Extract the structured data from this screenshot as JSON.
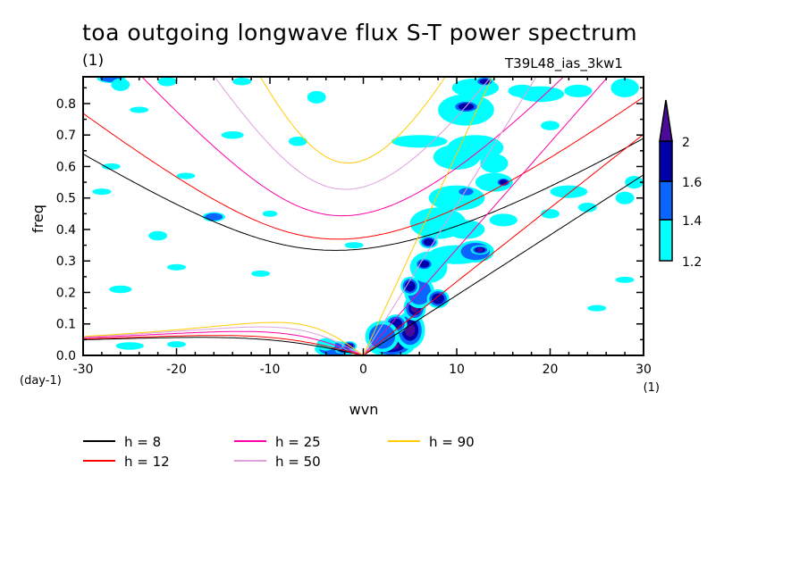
{
  "title": "toa outgoing longwave flux S-T power spectrum",
  "subtitle_units": "(1)",
  "run_label": "T39L48_ias_3kw1",
  "chart_data": {
    "type": "heatmap",
    "xlabel": "wvn",
    "xunits": "(1)",
    "ylabel": "freq",
    "yunits": "(day-1)",
    "xlim": [
      -30,
      30
    ],
    "ylim": [
      0,
      0.885
    ],
    "xticks": [
      -30,
      -20,
      -10,
      0,
      10,
      20,
      30
    ],
    "xtick_labels": [
      "-30",
      "-20",
      "-10",
      "0",
      "10",
      "20",
      "30"
    ],
    "yticks": [
      0,
      0.1,
      0.2,
      0.3,
      0.4,
      0.5,
      0.6,
      0.7,
      0.8
    ],
    "ytick_labels": [
      "0.0",
      "0.1",
      "0.2",
      "0.3",
      "0.4",
      "0.5",
      "0.6",
      "0.7",
      "0.8"
    ],
    "colorbar": {
      "levels": [
        1.2,
        1.4,
        1.6,
        2
      ],
      "level_labels": [
        "1.2",
        "1.4",
        "1.6",
        "2"
      ],
      "colors": [
        "#00ffff",
        "#0a64ff",
        "#0000a8",
        "#4a0a9a"
      ]
    },
    "dispersion_curves": [
      {
        "name": "h =  8",
        "h": 8,
        "color": "#000000"
      },
      {
        "name": "h = 12",
        "h": 12,
        "color": "#ff0000"
      },
      {
        "name": "h = 25",
        "h": 25,
        "color": "#ff00a8"
      },
      {
        "name": "h = 50",
        "h": 50,
        "color": "#dda0dd"
      },
      {
        "name": "h = 90",
        "h": 90,
        "color": "#ffcc00"
      }
    ],
    "power_regions": [
      [
        3,
        0.03,
        2.5,
        0.035,
        4
      ],
      [
        5,
        0.08,
        1.6,
        0.06,
        4
      ],
      [
        5.5,
        0.15,
        1.2,
        0.04,
        4
      ],
      [
        3.5,
        0.1,
        1.2,
        0.03,
        3
      ],
      [
        2,
        0.06,
        1.8,
        0.05,
        2
      ],
      [
        6,
        0.2,
        1.6,
        0.05,
        2
      ],
      [
        5,
        0.22,
        1,
        0.03,
        3
      ],
      [
        8,
        0.18,
        1.2,
        0.03,
        3
      ],
      [
        7,
        0.28,
        2,
        0.05,
        1
      ],
      [
        6.5,
        0.29,
        1,
        0.02,
        3
      ],
      [
        10,
        0.32,
        3,
        0.03,
        1
      ],
      [
        12,
        0.33,
        2,
        0.035,
        2
      ],
      [
        12.5,
        0.335,
        1,
        0.015,
        4
      ],
      [
        8,
        0.42,
        3,
        0.05,
        1
      ],
      [
        11,
        0.4,
        2,
        0.03,
        1
      ],
      [
        7,
        0.36,
        1,
        0.02,
        3
      ],
      [
        15,
        0.43,
        1.5,
        0.02,
        1
      ],
      [
        10,
        0.5,
        3,
        0.04,
        1
      ],
      [
        14,
        0.55,
        2,
        0.03,
        1
      ],
      [
        15,
        0.55,
        0.8,
        0.015,
        3
      ],
      [
        11,
        0.52,
        1,
        0.015,
        2
      ],
      [
        6,
        0.68,
        3,
        0.02,
        1
      ],
      [
        10,
        0.63,
        2.5,
        0.04,
        1
      ],
      [
        12,
        0.66,
        3,
        0.04,
        1
      ],
      [
        14,
        0.61,
        1.5,
        0.03,
        1
      ],
      [
        11,
        0.78,
        3,
        0.05,
        1
      ],
      [
        11,
        0.79,
        1.5,
        0.02,
        3
      ],
      [
        12,
        0.85,
        2.5,
        0.03,
        1
      ],
      [
        13,
        0.87,
        1,
        0.015,
        3
      ],
      [
        17,
        0.84,
        1.5,
        0.02,
        1
      ],
      [
        19,
        0.83,
        2.5,
        0.025,
        1
      ],
      [
        23,
        0.84,
        1.5,
        0.02,
        1
      ],
      [
        28,
        0.85,
        1.5,
        0.03,
        1
      ],
      [
        20,
        0.73,
        1,
        0.015,
        1
      ],
      [
        22,
        0.52,
        2,
        0.02,
        1
      ],
      [
        28,
        0.5,
        1,
        0.02,
        1
      ],
      [
        29,
        0.55,
        1,
        0.02,
        1
      ],
      [
        24,
        0.47,
        1,
        0.015,
        1
      ],
      [
        -3,
        0.02,
        2.2,
        0.025,
        2
      ],
      [
        -2,
        0.015,
        1,
        0.01,
        3
      ],
      [
        -4,
        0.035,
        1,
        0.02,
        1
      ],
      [
        -1.5,
        0.03,
        0.8,
        0.015,
        4
      ],
      [
        -27,
        0.88,
        1.5,
        0.015,
        2
      ],
      [
        -26,
        0.86,
        1,
        0.02,
        1
      ],
      [
        -21,
        0.87,
        1,
        0.015,
        1
      ],
      [
        -13,
        0.87,
        1,
        0.012,
        1
      ],
      [
        -14,
        0.7,
        1.2,
        0.012,
        1
      ],
      [
        -5,
        0.82,
        1,
        0.02,
        1
      ],
      [
        -7,
        0.68,
        1,
        0.015,
        1
      ],
      [
        -24,
        0.78,
        1,
        0.01,
        1
      ],
      [
        -16,
        0.44,
        1.2,
        0.015,
        2
      ],
      [
        -22,
        0.38,
        1,
        0.015,
        1
      ],
      [
        -28,
        0.52,
        1,
        0.01,
        1
      ],
      [
        -27,
        0.6,
        1,
        0.01,
        1
      ],
      [
        -20,
        0.28,
        1,
        0.01,
        1
      ],
      [
        -26,
        0.21,
        1.2,
        0.012,
        1
      ],
      [
        -19,
        0.57,
        1,
        0.01,
        1
      ],
      [
        -1,
        0.35,
        1,
        0.01,
        1
      ],
      [
        -11,
        0.26,
        1,
        0.01,
        1
      ],
      [
        -25,
        0.03,
        1.5,
        0.012,
        1
      ],
      [
        -20,
        0.035,
        1,
        0.01,
        1
      ],
      [
        -10,
        0.45,
        0.8,
        0.01,
        1
      ],
      [
        28,
        0.24,
        1,
        0.01,
        1
      ],
      [
        20,
        0.45,
        1,
        0.015,
        1
      ],
      [
        25,
        0.15,
        1,
        0.01,
        1
      ]
    ]
  }
}
